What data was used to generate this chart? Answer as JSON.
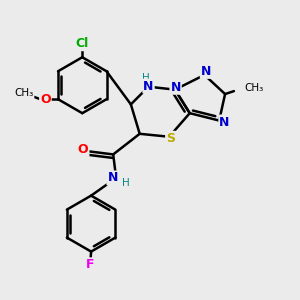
{
  "bg_color": "#ebebeb",
  "atom_colors": {
    "C": "#000000",
    "N": "#0000cc",
    "O": "#ff0000",
    "S": "#bbaa00",
    "F": "#ee00ee",
    "Cl": "#00aa00",
    "H": "#008888"
  },
  "bond_color": "#000000",
  "bond_width": 1.8,
  "figsize": [
    3.0,
    3.0
  ],
  "dpi": 100
}
